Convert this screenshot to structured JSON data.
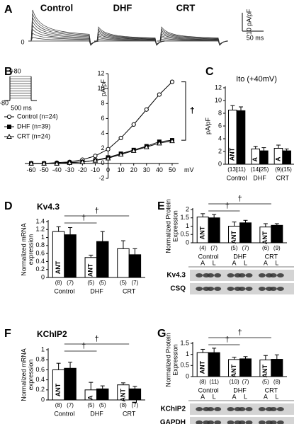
{
  "chart_data": [
    {
      "type": "traces",
      "panel": "A",
      "groups": [
        "Control",
        "DHF",
        "CRT"
      ],
      "scale_y": "10 pA/pF",
      "scale_x": "50 ms",
      "zero": "0"
    },
    {
      "type": "line",
      "panel": "B",
      "xlabel": "mV",
      "ylabel": "pA/pF",
      "protocol": {
        "top": "+80",
        "bottom": "-80",
        "duration": "500 ms"
      },
      "x": [
        -60,
        -50,
        -40,
        -30,
        -20,
        -10,
        0,
        10,
        20,
        30,
        40,
        50
      ],
      "xlim": [
        -65,
        55
      ],
      "xticks": [
        -60,
        -50,
        -40,
        -30,
        -20,
        -10,
        0,
        10,
        20,
        30,
        40,
        50
      ],
      "ylim": [
        -2,
        12
      ],
      "yticks": [
        -2,
        0,
        2,
        4,
        6,
        8,
        10,
        12
      ],
      "annotation": "†",
      "series": [
        {
          "name": "Control (n=24)",
          "marker": "circle",
          "fill": "#ffffff",
          "color": "#000000",
          "values": [
            0,
            0,
            0.1,
            0.2,
            0.5,
            1.0,
            1.9,
            3.4,
            5.2,
            7.2,
            9.2,
            10.9
          ]
        },
        {
          "name": "DHF (n=39)",
          "marker": "square",
          "fill": "#000000",
          "color": "#000000",
          "values": [
            0,
            0,
            0,
            0.1,
            0.2,
            0.4,
            0.8,
            1.3,
            1.8,
            2.3,
            2.9,
            3.1
          ]
        },
        {
          "name": "CRT (n=24)",
          "marker": "triangle",
          "fill": "#ffffff",
          "color": "#000000",
          "values": [
            0,
            0,
            0,
            0.1,
            0.2,
            0.4,
            0.7,
            1.2,
            1.7,
            2.2,
            2.7,
            3.0
          ]
        }
      ]
    },
    {
      "type": "bar",
      "panel": "C",
      "title": "Ito (+40mV)",
      "ylabel_lines": [
        "pA/pF"
      ],
      "categories": [
        "Control",
        "DHF",
        "CRT"
      ],
      "ylim": [
        0,
        12
      ],
      "yticks": [
        0,
        2,
        4,
        6,
        8,
        10,
        12
      ],
      "series": [
        {
          "color": "#ffffff",
          "values": [
            8.5,
            2.4,
            2.5
          ],
          "errors": [
            0.7,
            0.4,
            0.5
          ],
          "bar_labels": [
            "ANT",
            "A",
            "A"
          ],
          "n_labels": [
            "(13)",
            "(14)",
            "(9)"
          ]
        },
        {
          "color": "#000000",
          "values": [
            8.4,
            2.1,
            2.1
          ],
          "errors": [
            0.6,
            0.5,
            0.3
          ],
          "bar_labels": [
            "LTR",
            "L",
            "L"
          ],
          "n_labels": [
            "(11)",
            "(25)",
            "(15)"
          ]
        }
      ]
    },
    {
      "type": "bar",
      "panel": "D",
      "title": "Kv4.3",
      "ylabel_lines": [
        "Normalized mRNA",
        "expression"
      ],
      "categories": [
        "Control",
        "DHF",
        "CRT"
      ],
      "ylim": [
        0,
        1.4
      ],
      "yticks": [
        0,
        0.2,
        0.4,
        0.6,
        0.8,
        1,
        1.2,
        1.4
      ],
      "annotations": [
        "†",
        "†"
      ],
      "series": [
        {
          "color": "#ffffff",
          "values": [
            1.15,
            0.5,
            0.72
          ],
          "errors": [
            0.12,
            0.06,
            0.2
          ],
          "bar_labels": [
            "ANT",
            "ANT",
            null
          ],
          "n_labels": [
            "(8)",
            "(5)",
            "(5)"
          ]
        },
        {
          "color": "#000000",
          "values": [
            1.07,
            0.9,
            0.57
          ],
          "errors": [
            0.18,
            0.25,
            0.15
          ],
          "bar_labels": [
            "LTR",
            "LTR",
            null
          ],
          "n_labels": [
            "(7)",
            "(5)",
            "(7)"
          ]
        }
      ]
    },
    {
      "type": "bar",
      "panel": "E",
      "ylabel_lines": [
        "Normalized Protein",
        "Expression"
      ],
      "categories": [
        "Control",
        "DHF",
        "CRT"
      ],
      "ylim": [
        0,
        2
      ],
      "yticks": [
        0,
        0.5,
        1,
        1.5,
        2
      ],
      "annotations": [
        "†",
        "†"
      ],
      "blot_rows": [
        "Kv4.3",
        "CSQ"
      ],
      "lane_labels": [
        "A",
        "L",
        "A",
        "L",
        "A",
        "L"
      ],
      "series": [
        {
          "color": "#ffffff",
          "values": [
            1.55,
            1.0,
            0.95
          ],
          "errors": [
            0.2,
            0.25,
            0.2
          ],
          "bar_labels": [
            "ANT",
            "ANT",
            "ANT"
          ],
          "n_labels": [
            "(4)",
            "(5)",
            "(6)"
          ]
        },
        {
          "color": "#000000",
          "values": [
            1.5,
            1.2,
            1.05
          ],
          "errors": [
            0.2,
            0.15,
            0.1
          ],
          "bar_labels": [
            "LTR",
            "LTR",
            "LTR"
          ],
          "n_labels": [
            "(7)",
            "(7)",
            "(9)"
          ]
        }
      ]
    },
    {
      "type": "bar",
      "panel": "F",
      "title": "KChIP2",
      "ylabel_lines": [
        "Normalized mRNA",
        "expression"
      ],
      "categories": [
        "Control",
        "DHF",
        "CRT"
      ],
      "ylim": [
        0,
        1
      ],
      "yticks": [
        0,
        0.2,
        0.4,
        0.6,
        0.8,
        1
      ],
      "annotations": [
        "†",
        "†"
      ],
      "series": [
        {
          "color": "#ffffff",
          "values": [
            0.6,
            0.2,
            0.3
          ],
          "errors": [
            0.13,
            0.15,
            0.04
          ],
          "bar_labels": [
            "ANT",
            "A",
            "ANT"
          ],
          "n_labels": [
            "(8)",
            "(5)",
            "(8)"
          ]
        },
        {
          "color": "#000000",
          "values": [
            0.63,
            0.22,
            0.22
          ],
          "errors": [
            0.12,
            0.06,
            0.05
          ],
          "bar_labels": [
            "LTR",
            "L",
            "LTR"
          ],
          "n_labels": [
            "(7)",
            "(5)",
            "(7)"
          ]
        }
      ]
    },
    {
      "type": "bar",
      "panel": "G",
      "ylabel_lines": [
        "Normalized Protein",
        "Expression"
      ],
      "categories": [
        "Control",
        "DHF",
        "CRT"
      ],
      "ylim": [
        0,
        1.5
      ],
      "yticks": [
        0,
        0.5,
        1,
        1.5
      ],
      "annotations": [
        "†",
        "†"
      ],
      "blot_rows": [
        "KChIP2",
        "GAPDH"
      ],
      "lane_labels": [
        "A",
        "L",
        "A",
        "L",
        "A",
        "L"
      ],
      "series": [
        {
          "color": "#ffffff",
          "values": [
            1.08,
            0.77,
            0.75
          ],
          "errors": [
            0.15,
            0.1,
            0.2
          ],
          "bar_labels": [
            "ANT",
            "ANT",
            "ANT"
          ],
          "n_labels": [
            "(8)",
            "(10)",
            "(5)"
          ]
        },
        {
          "color": "#000000",
          "values": [
            1.08,
            0.8,
            0.78
          ],
          "errors": [
            0.2,
            0.1,
            0.2
          ],
          "bar_labels": [
            "LTR",
            "LTR",
            "LTR"
          ],
          "n_labels": [
            "(11)",
            "(7)",
            "(8)"
          ]
        }
      ]
    }
  ]
}
